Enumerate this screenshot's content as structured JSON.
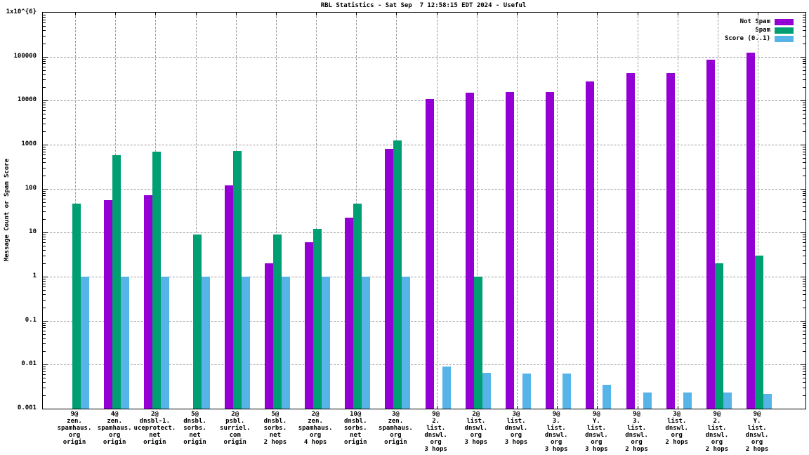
{
  "title": "RBL Statistics - Sat Sep  7 12:58:15 EDT 2024 - Useful",
  "y_axis": {
    "label": "Message Count or Spam Score",
    "tick_labels": [
      "1x10^{6}",
      "100000",
      "10000",
      "1000",
      "100",
      "10",
      "1",
      "0.1",
      "0.01",
      "0.001"
    ]
  },
  "legend": {
    "items": [
      {
        "label": "Not Spam",
        "color": "#9400d3"
      },
      {
        "label": "Spam",
        "color": "#009e73"
      },
      {
        "label": "Score (0..1)",
        "color": "#56b4e9"
      }
    ]
  },
  "chart_data": {
    "type": "bar",
    "title": "RBL Statistics - Sat Sep  7 12:58:15 EDT 2024 - Useful",
    "xlabel": "",
    "ylabel": "Message Count or Spam Score",
    "y_scale": "log",
    "ylim": [
      0.001,
      1000000
    ],
    "grid": true,
    "legend_position": "top-right",
    "categories": [
      [
        "9@",
        "zen.",
        "spamhaus.",
        "org",
        "origin"
      ],
      [
        "4@",
        "zen.",
        "spamhaus.",
        "org",
        "origin"
      ],
      [
        "2@",
        "dnsbl-1.",
        "uceprotect.",
        "net",
        "origin"
      ],
      [
        "5@",
        "dnsbl.",
        "sorbs.",
        "net",
        "origin"
      ],
      [
        "2@",
        "psbl.",
        "surriel.",
        "com",
        "origin"
      ],
      [
        "5@",
        "dnsbl.",
        "sorbs.",
        "net",
        "2 hops"
      ],
      [
        "2@",
        "zen.",
        "spamhaus.",
        "org",
        "4 hops"
      ],
      [
        "10@",
        "dnsbl.",
        "sorbs.",
        "net",
        "origin"
      ],
      [
        "3@",
        "zen.",
        "spamhaus.",
        "org",
        "origin"
      ],
      [
        "9@",
        "2.",
        "list.",
        "dnswl.",
        "org",
        "3 hops"
      ],
      [
        "2@",
        "list.",
        "dnswl.",
        "org",
        "3 hops"
      ],
      [
        "3@",
        "list.",
        "dnswl.",
        "org",
        "3 hops"
      ],
      [
        "9@",
        "3.",
        "list.",
        "dnswl.",
        "org",
        "3 hops"
      ],
      [
        "9@",
        "Y.",
        "list.",
        "dnswl.",
        "org",
        "3 hops"
      ],
      [
        "9@",
        "3.",
        "list.",
        "dnswl.",
        "org",
        "2 hops"
      ],
      [
        "3@",
        "list.",
        "dnswl.",
        "org",
        "2 hops"
      ],
      [
        "9@",
        "2.",
        "list.",
        "dnswl.",
        "org",
        "2 hops"
      ],
      [
        "9@",
        "Y.",
        "list.",
        "dnswl.",
        "org",
        "2 hops"
      ]
    ],
    "series": [
      {
        "name": "Not Spam",
        "color": "#9400d3",
        "values": [
          null,
          55,
          70,
          null,
          120,
          2,
          6,
          22,
          800,
          11000,
          15000,
          16000,
          16000,
          27000,
          42000,
          42000,
          85000,
          125000
        ]
      },
      {
        "name": "Spam",
        "color": "#009e73",
        "values": [
          45,
          580,
          700,
          9,
          730,
          9,
          12,
          45,
          1250,
          null,
          1,
          null,
          null,
          null,
          null,
          null,
          2,
          3
        ]
      },
      {
        "name": "Score (0..1)",
        "color": "#56b4e9",
        "values": [
          1,
          1,
          1,
          1,
          1,
          1,
          1,
          1,
          1,
          0.009,
          0.0065,
          0.0062,
          0.0062,
          0.0035,
          0.0023,
          0.0023,
          0.0023,
          0.0022
        ]
      }
    ]
  }
}
